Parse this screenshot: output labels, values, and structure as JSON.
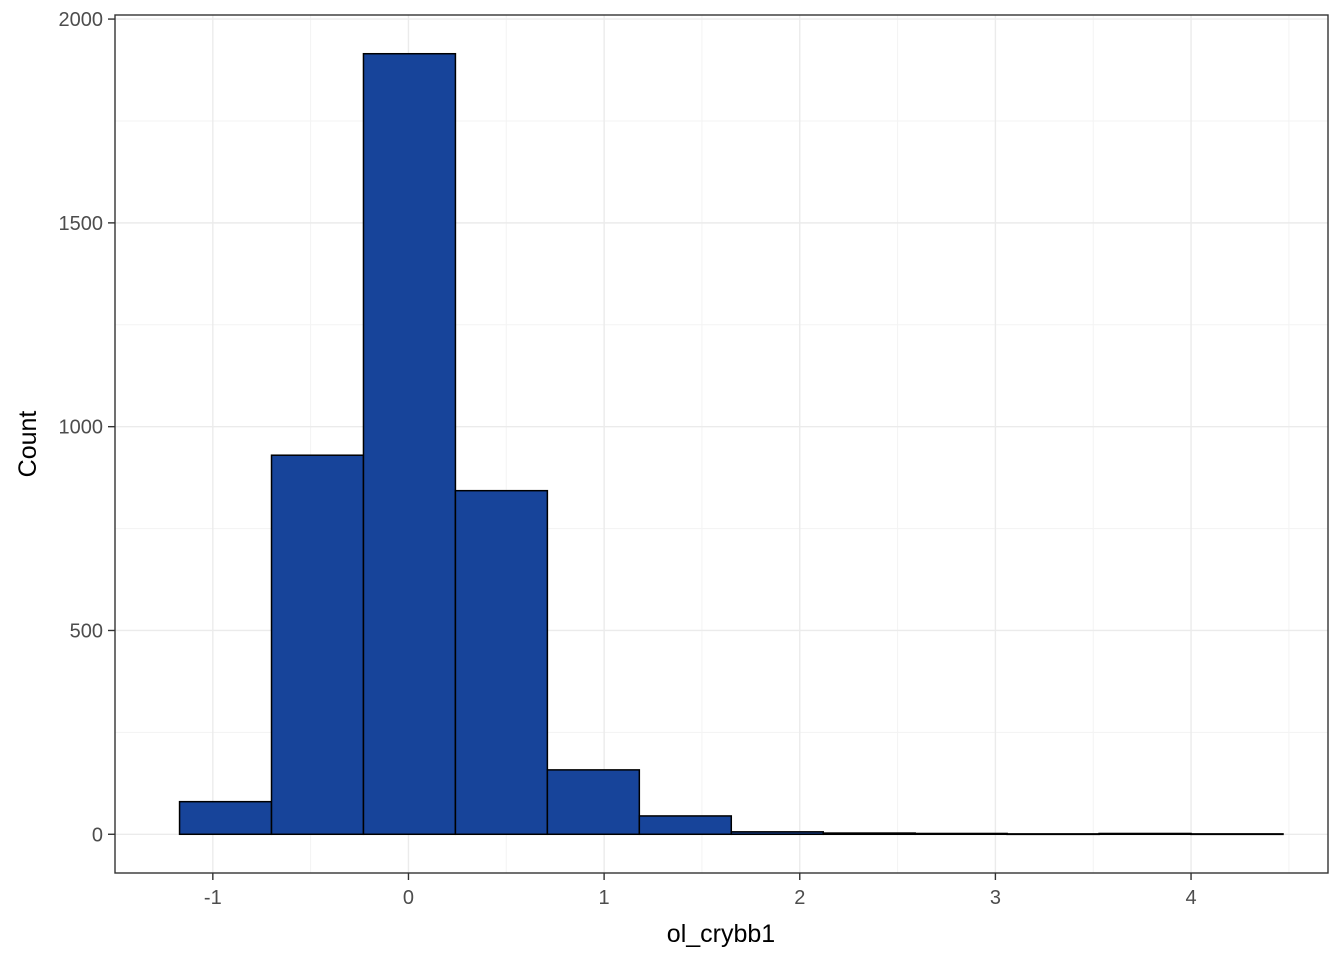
{
  "chart_data": {
    "type": "bar",
    "subtype": "histogram",
    "title": "",
    "xlabel": "ol_crybb1",
    "ylabel": "Count",
    "xlim": [
      -1.5,
      4.7
    ],
    "ylim": [
      -95,
      2010
    ],
    "x_ticks": [
      -1,
      0,
      1,
      2,
      3,
      4
    ],
    "x_tick_labels": [
      "-1",
      "0",
      "1",
      "2",
      "3",
      "4"
    ],
    "y_ticks": [
      0,
      500,
      1000,
      1500,
      2000
    ],
    "y_tick_labels": [
      "0",
      "500",
      "1000",
      "1500",
      "2000"
    ],
    "bins": [
      {
        "x0": -1.17,
        "x1": -0.7,
        "count": 80
      },
      {
        "x0": -0.7,
        "x1": -0.23,
        "count": 930
      },
      {
        "x0": -0.23,
        "x1": 0.24,
        "count": 1915
      },
      {
        "x0": 0.24,
        "x1": 0.71,
        "count": 843
      },
      {
        "x0": 0.71,
        "x1": 1.18,
        "count": 158
      },
      {
        "x0": 1.18,
        "x1": 1.65,
        "count": 45
      },
      {
        "x0": 1.65,
        "x1": 2.12,
        "count": 6
      },
      {
        "x0": 2.12,
        "x1": 2.59,
        "count": 3
      },
      {
        "x0": 2.59,
        "x1": 3.06,
        "count": 2
      },
      {
        "x0": 3.06,
        "x1": 3.53,
        "count": 1
      },
      {
        "x0": 3.53,
        "x1": 4.0,
        "count": 2
      },
      {
        "x0": 4.0,
        "x1": 4.47,
        "count": 1
      }
    ],
    "bar_fill": "#17449a",
    "bar_outline": "#000000",
    "grid": true,
    "legend": "none"
  }
}
